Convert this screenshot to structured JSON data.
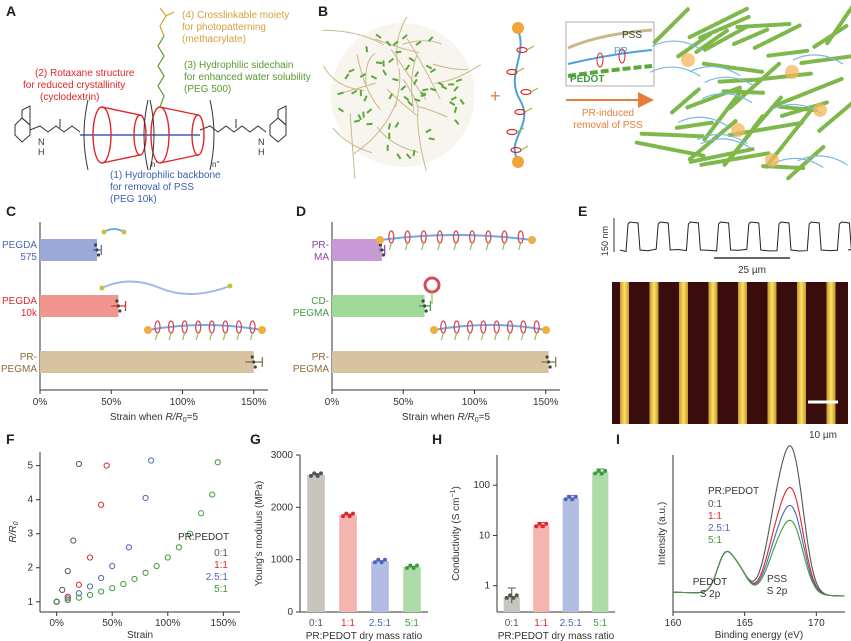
{
  "panel_labels": [
    "A",
    "B",
    "C",
    "D",
    "E",
    "F",
    "G",
    "H",
    "I"
  ],
  "panelA": {
    "l1": "(4) Crosslinkable moiety",
    "l1b": "for photopatterning",
    "l1c": "(methacrylate)",
    "l2": "(2) Rotaxane structure",
    "l2b": "for reduced crystallinity",
    "l2c": "(cyclodextrin)",
    "l3": "(3) Hydrophilic sidechain",
    "l3b": "for enhanced water solubility",
    "l3c": "(PEG 500)",
    "l4": "(1) Hydrophilic backbone",
    "l4b": "for removal of PSS",
    "l4c": "(PEG 10k)",
    "n1": "n'",
    "n2": "n''",
    "nh": "N",
    "h": "H",
    "colors": {
      "c1": "#d4a13a",
      "c2": "#e0262b",
      "c3": "#5a9a2e",
      "c4": "#3a5fb0"
    }
  },
  "panelB": {
    "pss": "PSS",
    "pr": "PR",
    "pedot": "PEDOT",
    "arrow1": "PR-induced",
    "arrow2": "removal of PSS",
    "plus": "+"
  },
  "panelC": {
    "chart_data": {
      "type": "bar",
      "categories": [
        "PEGDA 575",
        "PEGDA 10k",
        "PR-PEGMA"
      ],
      "cat_lines": [
        [
          "PEGDA",
          "575"
        ],
        [
          "PEGDA",
          "10k"
        ],
        [
          "PR-",
          "PEGMA"
        ]
      ],
      "cat_colors": [
        "#4c67b8",
        "#e0262b",
        "#8a6a3a"
      ],
      "values": [
        40,
        55,
        150
      ],
      "errors": [
        3,
        5,
        6
      ],
      "bar_colors": [
        "#9aa9d8",
        "#f0968f",
        "#d8c3a0"
      ],
      "xlim": [
        0,
        160
      ],
      "xticks": [
        "0%",
        "50%",
        "100%",
        "150%"
      ],
      "xtick_vals": [
        0,
        50,
        100,
        150
      ],
      "xlabel_pre": "Strain when ",
      "xlabel_var": "R/R",
      "xlabel_sub": "0",
      "xlabel_post": "=5"
    }
  },
  "panelD": {
    "chart_data": {
      "type": "bar",
      "categories": [
        "PR-MA",
        "CD-PEGMA",
        "PR-PEGMA"
      ],
      "cat_lines": [
        [
          "PR-",
          "MA"
        ],
        [
          "CD-",
          "PEGMA"
        ],
        [
          "PR-",
          "PEGMA"
        ]
      ],
      "cat_colors": [
        "#8a3fa0",
        "#3e9a3e",
        "#8a6a3a"
      ],
      "values": [
        35,
        65,
        152
      ],
      "errors": [
        2,
        4,
        5
      ],
      "bar_colors": [
        "#c79ad6",
        "#9ed99a",
        "#d8c3a0"
      ],
      "xlim": [
        0,
        160
      ],
      "xticks": [
        "0%",
        "50%",
        "100%",
        "150%"
      ],
      "xtick_vals": [
        0,
        50,
        100,
        150
      ],
      "xlabel_pre": "Strain when ",
      "xlabel_var": "R/R",
      "xlabel_sub": "0",
      "xlabel_post": "=5"
    }
  },
  "panelE": {
    "profile_label": "150 nm",
    "scale_top": "25 µm",
    "scale_bottom": "10 µm"
  },
  "panelF": {
    "chart_data": {
      "type": "scatter",
      "xlabel": "Strain",
      "ylabel_var": "R/R",
      "ylabel_sub": "0",
      "xlim": [
        -15,
        165
      ],
      "ylim": [
        0.7,
        5.4
      ],
      "xticks": [
        "0%",
        "50%",
        "100%",
        "150%"
      ],
      "xtick_vals": [
        0,
        50,
        100,
        150
      ],
      "yticks": [
        "1",
        "2",
        "3",
        "4",
        "5"
      ],
      "ytick_vals": [
        1,
        2,
        3,
        4,
        5
      ],
      "legend_title": "PR:PEDOT",
      "series": [
        {
          "name": "0:1",
          "color": "#555555",
          "x": [
            0,
            5,
            10,
            15,
            20
          ],
          "y": [
            1.0,
            1.35,
            1.9,
            2.8,
            5.05
          ]
        },
        {
          "name": "1:1",
          "color": "#e0262b",
          "x": [
            0,
            10,
            20,
            30,
            40,
            45
          ],
          "y": [
            1.0,
            1.15,
            1.5,
            2.3,
            3.85,
            5.0
          ]
        },
        {
          "name": "2.5:1",
          "color": "#4c67b8",
          "x": [
            0,
            10,
            20,
            30,
            40,
            50,
            65,
            80,
            85
          ],
          "y": [
            1.0,
            1.1,
            1.25,
            1.45,
            1.7,
            2.05,
            2.6,
            4.05,
            5.15
          ]
        },
        {
          "name": "5:1",
          "color": "#3e9a3e",
          "x": [
            0,
            10,
            20,
            30,
            40,
            50,
            60,
            70,
            80,
            90,
            100,
            110,
            120,
            130,
            140,
            145
          ],
          "y": [
            1.0,
            1.05,
            1.12,
            1.2,
            1.3,
            1.4,
            1.52,
            1.67,
            1.85,
            2.05,
            2.3,
            2.6,
            3.0,
            3.6,
            4.15,
            5.1
          ]
        }
      ]
    }
  },
  "panelG": {
    "chart_data": {
      "type": "bar",
      "categories": [
        "0:1",
        "1:1",
        "2.5:1",
        "5:1"
      ],
      "values": [
        2620,
        1850,
        970,
        860
      ],
      "errors": [
        25,
        20,
        12,
        15
      ],
      "bar_colors": [
        "#c9c4bd",
        "#f5b4b0",
        "#b3bde4",
        "#aedca8"
      ],
      "dot_colors": [
        "#555555",
        "#e0262b",
        "#4c67b8",
        "#3e9a3e"
      ],
      "ylim": [
        0,
        3000
      ],
      "yticks": [
        "0",
        "1000",
        "2000",
        "3000"
      ],
      "ytick_vals": [
        0,
        1000,
        2000,
        3000
      ],
      "ylabel": "Young's modulus (MPa)",
      "xlabel": "PR:PEDOT dry mass ratio"
    }
  },
  "panelH": {
    "chart_data": {
      "type": "bar",
      "scale": "log",
      "categories": [
        "0:1",
        "1:1",
        "2.5:1",
        "5:1"
      ],
      "values": [
        0.6,
        16,
        55,
        180
      ],
      "err_low": [
        0.45,
        14,
        48,
        155
      ],
      "err_high": [
        0.9,
        18,
        62,
        210
      ],
      "bar_colors": [
        "#c9c4bd",
        "#f5b4b0",
        "#b3bde4",
        "#aedca8"
      ],
      "dot_colors": [
        "#555555",
        "#e0262b",
        "#4c67b8",
        "#3e9a3e"
      ],
      "ylim": [
        0.3,
        400
      ],
      "yticks": [
        "1",
        "10",
        "100"
      ],
      "ytick_vals": [
        1,
        10,
        100
      ],
      "ylabel": "Conductivity (S cm",
      "ylabel_sup": "−1",
      "ylabel_end": ")",
      "xlabel": "PR:PEDOT dry mass ratio"
    }
  },
  "panelI": {
    "chart_data": {
      "type": "line",
      "xlabel": "Binding energy (eV)",
      "ylabel": "Intensity (a.u.)",
      "xlim": [
        160,
        172
      ],
      "xticks": [
        "160",
        "165",
        "170"
      ],
      "xtick_vals": [
        160,
        165,
        170
      ],
      "legend_title": "PR:PEDOT",
      "ann_pedot1": "PEDOT",
      "ann_pedot2": "S 2p",
      "ann_pss1": "PSS",
      "ann_pss2": "S 2p",
      "series": [
        {
          "name": "0:1",
          "color": "#555555",
          "peak_pss": 1.0
        },
        {
          "name": "1:1",
          "color": "#e0262b",
          "peak_pss": 0.72
        },
        {
          "name": "2.5:1",
          "color": "#4c67b8",
          "peak_pss": 0.6
        },
        {
          "name": "5:1",
          "color": "#3e9a3e",
          "peak_pss": 0.5
        }
      ]
    }
  }
}
